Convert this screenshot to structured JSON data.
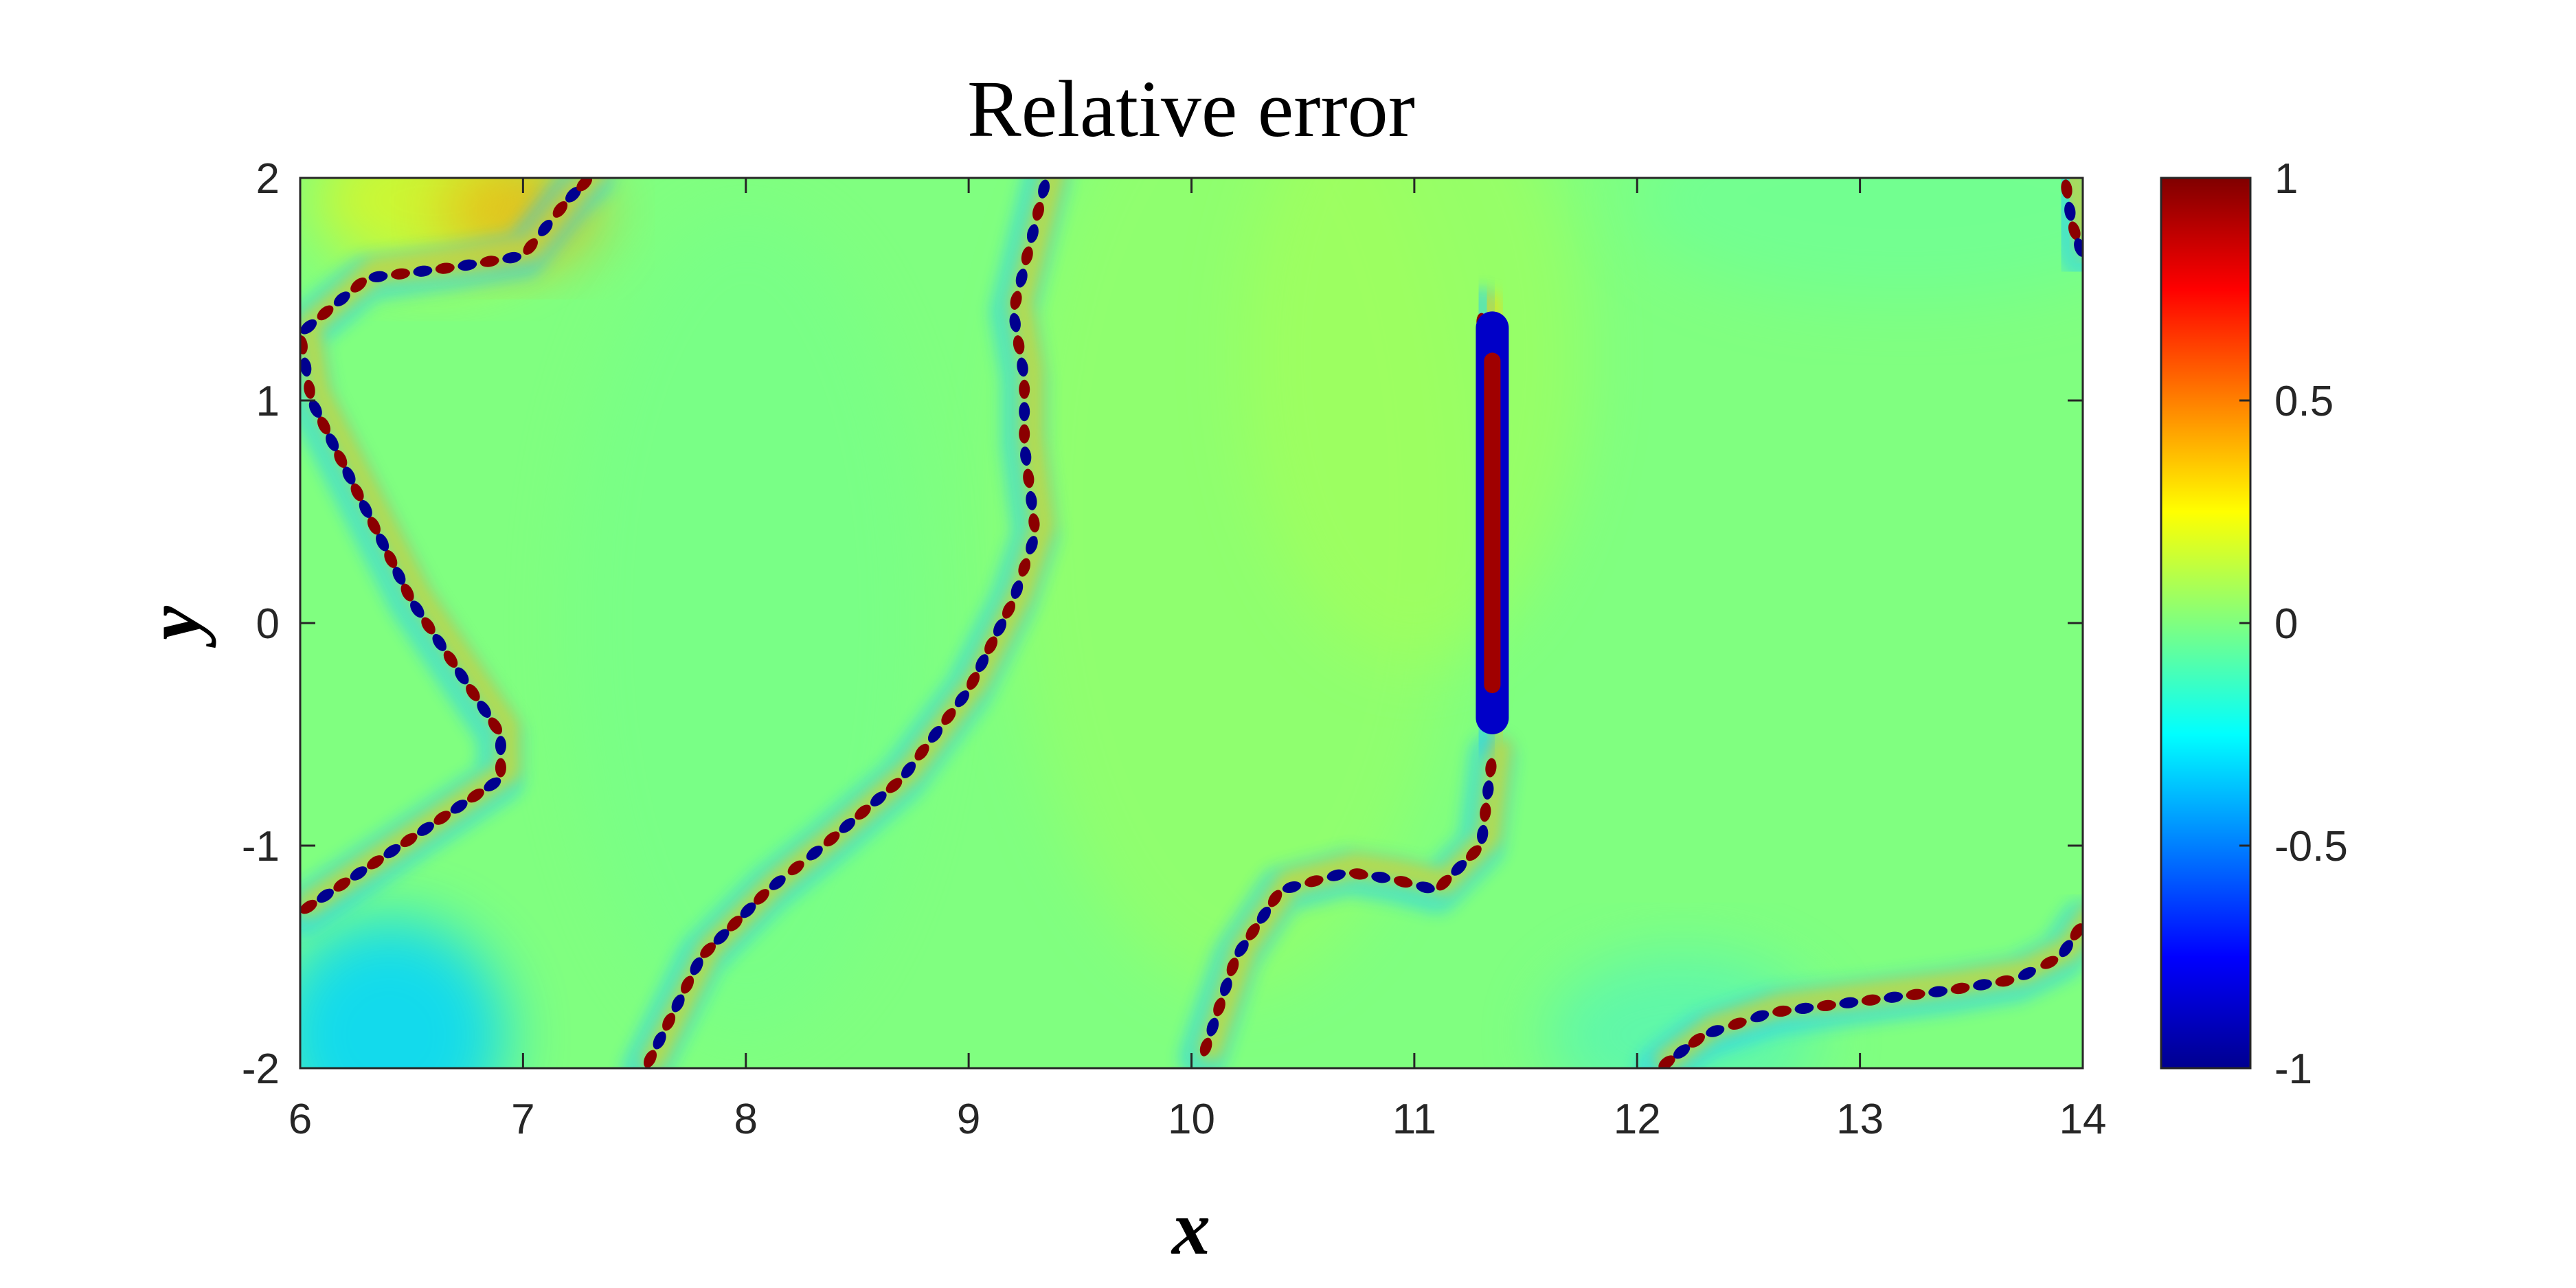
{
  "chart_data": {
    "type": "heatmap",
    "title": "Relative error",
    "xlabel": "x",
    "ylabel": "y",
    "xlim": [
      6,
      14
    ],
    "ylim": [
      -2,
      2
    ],
    "x_ticks": [
      "6",
      "7",
      "8",
      "9",
      "10",
      "11",
      "12",
      "13",
      "14"
    ],
    "y_ticks": [
      "-2",
      "-1",
      "0",
      "1",
      "2"
    ],
    "colorbar": {
      "colormap": "jet",
      "range": [
        -1,
        1
      ],
      "ticks": [
        "-1",
        "-0.5",
        "0",
        "0.5",
        "1"
      ]
    },
    "background_value": 0,
    "features": [
      {
        "name": "left-front",
        "points": [
          [
            6.0,
            -1.3
          ],
          [
            6.3,
            -1.1
          ],
          [
            6.6,
            -0.9
          ],
          [
            6.9,
            -0.7
          ],
          [
            6.9,
            -0.5
          ],
          [
            6.7,
            -0.2
          ],
          [
            6.5,
            0.1
          ],
          [
            6.35,
            0.4
          ],
          [
            6.2,
            0.7
          ],
          [
            6.05,
            1.0
          ],
          [
            6.0,
            1.3
          ],
          [
            6.3,
            1.55
          ],
          [
            6.7,
            1.6
          ],
          [
            7.0,
            1.65
          ],
          [
            7.2,
            1.9
          ],
          [
            7.3,
            2.0
          ]
        ]
      },
      {
        "name": "middle-front",
        "points": [
          [
            7.55,
            -2.0
          ],
          [
            7.8,
            -1.5
          ],
          [
            8.1,
            -1.2
          ],
          [
            8.35,
            -1.0
          ],
          [
            8.7,
            -0.7
          ],
          [
            9.0,
            -0.3
          ],
          [
            9.2,
            0.1
          ],
          [
            9.3,
            0.4
          ],
          [
            9.25,
            0.8
          ],
          [
            9.25,
            1.1
          ],
          [
            9.2,
            1.4
          ],
          [
            9.3,
            1.8
          ],
          [
            9.35,
            2.0
          ]
        ]
      },
      {
        "name": "vertical-shock",
        "points": [
          [
            11.35,
            -0.5
          ],
          [
            11.35,
            0.0
          ],
          [
            11.35,
            0.5
          ],
          [
            11.33,
            1.0
          ],
          [
            11.3,
            1.4
          ]
        ]
      },
      {
        "name": "lower-center-front",
        "points": [
          [
            10.05,
            -1.95
          ],
          [
            10.2,
            -1.5
          ],
          [
            10.4,
            -1.2
          ],
          [
            10.7,
            -1.12
          ],
          [
            10.9,
            -1.15
          ],
          [
            11.1,
            -1.2
          ],
          [
            11.3,
            -1.0
          ],
          [
            11.35,
            -0.6
          ]
        ]
      },
      {
        "name": "bottom-right-front",
        "points": [
          [
            12.1,
            -2.0
          ],
          [
            12.3,
            -1.85
          ],
          [
            12.6,
            -1.75
          ],
          [
            13.0,
            -1.7
          ],
          [
            13.4,
            -1.65
          ],
          [
            13.7,
            -1.6
          ],
          [
            13.9,
            -1.5
          ],
          [
            14.0,
            -1.35
          ]
        ]
      },
      {
        "name": "top-right-corner",
        "points": [
          [
            13.92,
            2.0
          ],
          [
            13.95,
            1.8
          ],
          [
            14.0,
            1.65
          ]
        ]
      }
    ],
    "grid": false,
    "legend": "none"
  }
}
